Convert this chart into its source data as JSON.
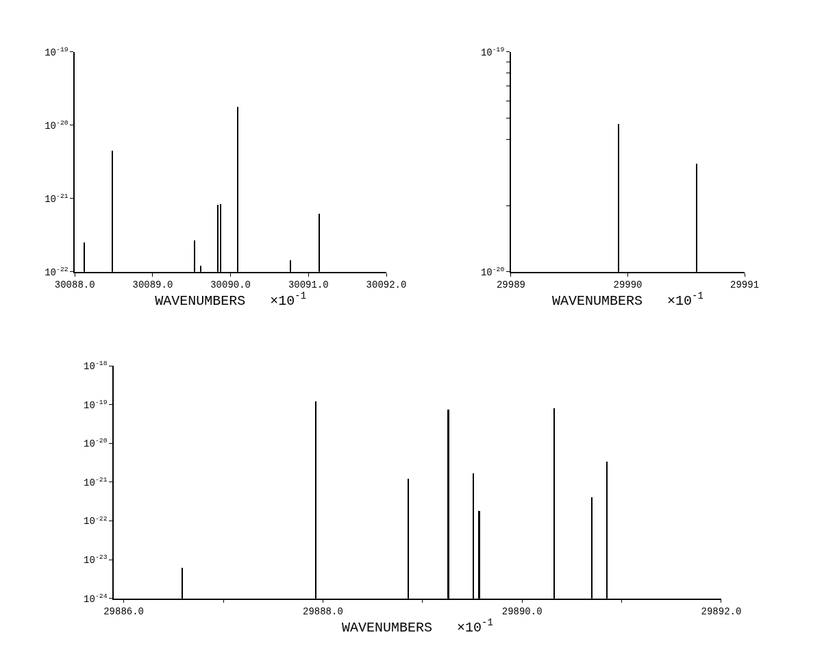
{
  "chart_data": [
    {
      "type": "bar",
      "xlabel": "WAVENUMBERS   ×10$^{-1}$",
      "log": "y",
      "color": "#000000",
      "x": [
        30088.12,
        30088.48,
        30089.54,
        30089.62,
        30089.84,
        30089.87,
        30090.09,
        30090.77,
        30091.14
      ],
      "values": [
        2.5e-22,
        4.5e-21,
        2.7e-22,
        1.2e-22,
        8.3e-22,
        8.5e-22,
        1.8e-20,
        1.45e-22,
        6.2e-22
      ],
      "xlim": [
        30088.0,
        30092.0
      ],
      "xticks": [
        {
          "value": 30088,
          "label": "30088.0"
        },
        {
          "value": 30089,
          "label": "30089.0"
        },
        {
          "value": 30090,
          "label": "30090.0"
        },
        {
          "value": 30091,
          "label": "30091.0"
        },
        {
          "value": 30092,
          "label": "30092.0"
        }
      ],
      "ylim": [
        1e-22,
        1e-19
      ],
      "yticks": [
        {
          "value": 1e-22,
          "label": "10$^{-22}$"
        },
        {
          "value": 1e-21,
          "label": "10$^{-21}$"
        },
        {
          "value": 1e-20,
          "label": "10$^{-20}$"
        },
        {
          "value": 1e-19,
          "label": "10$^{-19}$"
        }
      ]
    },
    {
      "type": "bar",
      "xlabel": "WAVENUMBERS   ×10$^{-1}$",
      "log": "y",
      "color": "#000000",
      "x": [
        29989.92,
        29990.59
      ],
      "values": [
        4.7e-20,
        3.1e-20
      ],
      "xlim": [
        29989,
        29991
      ],
      "xticks": [
        29989,
        29990,
        29991
      ],
      "ylim": [
        1e-20,
        1e-19
      ],
      "yticks": [
        {
          "value": 1e-20,
          "label": "10$^{-20}$"
        },
        {
          "value": 2e-20,
          "label": null
        },
        {
          "value": 4e-20,
          "label": null
        },
        {
          "value": 5e-20,
          "label": null
        },
        {
          "value": 6e-20,
          "label": null
        },
        {
          "value": 7e-20,
          "label": null
        },
        {
          "value": 8e-20,
          "label": null
        },
        {
          "value": 9e-20,
          "label": null
        },
        {
          "value": 1e-19,
          "label": "10$^{-19}$"
        }
      ]
    },
    {
      "type": "bar",
      "xlabel": "WAVENUMBERS   ×10$^{-1}$",
      "log": "y",
      "color": "#000000",
      "x": [
        29886.59,
        29887.93,
        29888.86,
        29889.26,
        29889.51,
        29889.57,
        29890.32,
        29890.7,
        29890.85
      ],
      "values": [
        6e-24,
        1.2e-19,
        1.2e-21,
        7.5e-20,
        1.7e-21,
        1.8e-22,
        8e-20,
        4e-22,
        3.4e-21
      ],
      "xlim": [
        29885.9,
        29892.0
      ],
      "xticks": [
        {
          "value": 29886,
          "label": "29886.0"
        },
        {
          "value": 29887,
          "label": null
        },
        {
          "value": 29888,
          "label": "29888.0"
        },
        {
          "value": 29889,
          "label": null
        },
        {
          "value": 29890,
          "label": "29890.0"
        },
        {
          "value": 29891,
          "label": null
        },
        {
          "value": 29892,
          "label": "29892.0"
        }
      ],
      "ylim": [
        1e-24,
        1e-18
      ],
      "yticks": [
        {
          "value": 1e-24,
          "label": "10$^{-24}$"
        },
        {
          "value": 1e-23,
          "label": "10$^{-23}$"
        },
        {
          "value": 1e-22,
          "label": "10$^{-22}$"
        },
        {
          "value": 1e-21,
          "label": "10$^{-21}$"
        },
        {
          "value": 1e-20,
          "label": "10$^{-20}$"
        },
        {
          "value": 1e-19,
          "label": "10$^{-19}$"
        },
        {
          "value": 1e-18,
          "label": "10$^{-18}$"
        }
      ]
    }
  ]
}
